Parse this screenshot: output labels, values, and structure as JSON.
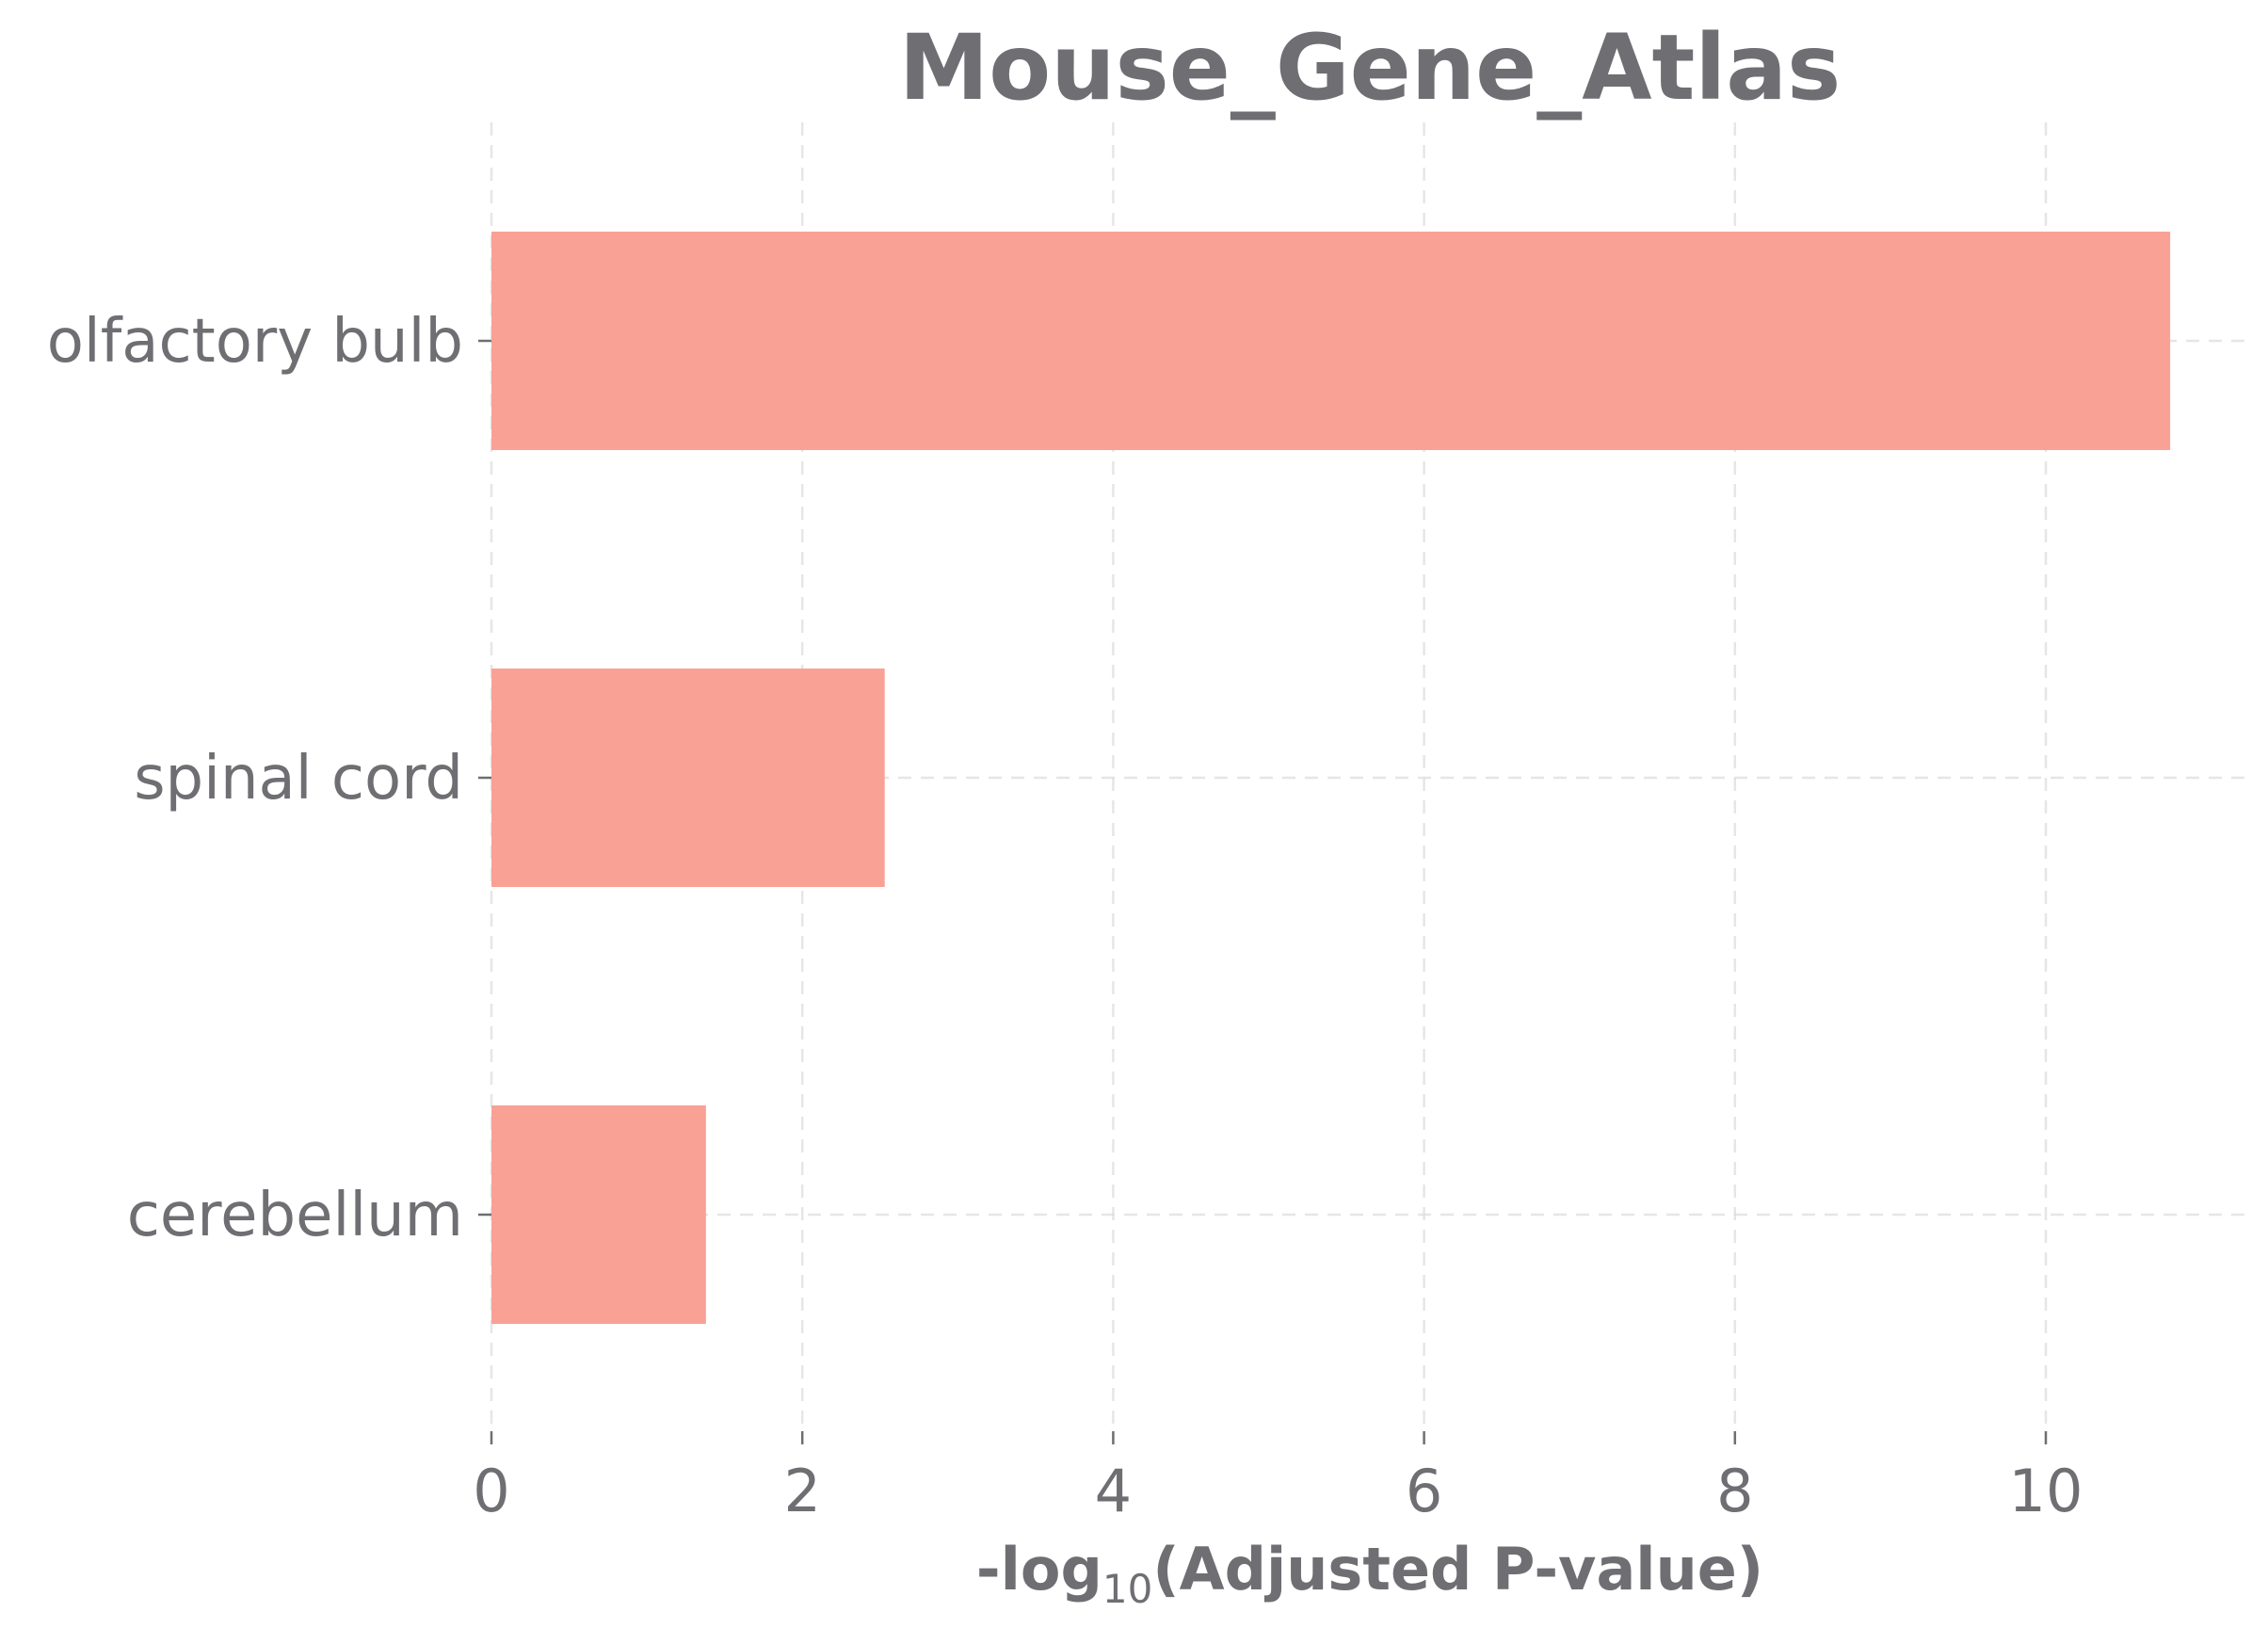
{
  "chart_data": {
    "type": "bar",
    "orientation": "horizontal",
    "title": "Mouse_Gene_Atlas",
    "xlabel_prefix": "-log",
    "xlabel_sub": "10",
    "xlabel_suffix": "(Adjusted P-value)",
    "ylabel": "",
    "categories": [
      "olfactory bulb",
      "spinal cord",
      "cerebellum"
    ],
    "values": [
      10.8,
      2.53,
      1.38
    ],
    "xlim": [
      0,
      11.3
    ],
    "xticks": [
      0,
      2,
      4,
      6,
      8,
      10
    ],
    "grid": true,
    "bar_color": "#f9a195",
    "text_color": "#6e6e73"
  }
}
